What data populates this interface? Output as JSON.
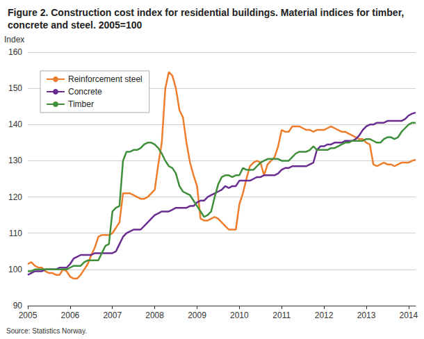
{
  "chart_data": {
    "type": "line",
    "title": "Figure 2. Construction cost index for residential buildings. Material indices for timber, concrete and steel. 2005=100",
    "y_label": "Index",
    "source": "Source: Statistics Norway.",
    "categories": [
      "2005",
      null,
      null,
      null,
      null,
      null,
      null,
      null,
      null,
      null,
      null,
      null,
      "2006",
      null,
      null,
      null,
      null,
      null,
      null,
      null,
      null,
      null,
      null,
      null,
      "2007",
      null,
      null,
      null,
      null,
      null,
      null,
      null,
      null,
      null,
      null,
      null,
      "2008",
      null,
      null,
      null,
      null,
      null,
      null,
      null,
      null,
      null,
      null,
      null,
      "2009",
      null,
      null,
      null,
      null,
      null,
      null,
      null,
      null,
      null,
      null,
      null,
      "2010",
      null,
      null,
      null,
      null,
      null,
      null,
      null,
      null,
      null,
      null,
      null,
      "2011",
      null,
      null,
      null,
      null,
      null,
      null,
      null,
      null,
      null,
      null,
      null,
      "2012",
      null,
      null,
      null,
      null,
      null,
      null,
      null,
      null,
      null,
      null,
      null,
      "2013",
      null,
      null,
      null,
      null,
      null,
      null,
      null,
      null,
      null,
      null,
      null,
      "2014",
      null,
      null
    ],
    "series": [
      {
        "name": "Reinforcement steel",
        "color": "#ee7d2b",
        "values": [
          101.5,
          102,
          101,
          100.5,
          100.5,
          99.5,
          99,
          99,
          98.5,
          98.5,
          100,
          99.5,
          98,
          97.5,
          97.5,
          98.5,
          100,
          101.5,
          104,
          106,
          109,
          109.5,
          109.5,
          109.5,
          110,
          111.5,
          113,
          121,
          121,
          121,
          120.5,
          120,
          119.5,
          119.5,
          120,
          121,
          122,
          129,
          135,
          150,
          154.5,
          153.5,
          150,
          144,
          142,
          135,
          129.5,
          126,
          123,
          114,
          113.5,
          113.5,
          114,
          114.5,
          114,
          113,
          112,
          111,
          111,
          111,
          118,
          121,
          125,
          128.5,
          129.5,
          130,
          129.5,
          126,
          129,
          130,
          131,
          134,
          138.5,
          138,
          138,
          139.5,
          139.5,
          139.5,
          139,
          138.5,
          138.5,
          138,
          138.5,
          138.5,
          138.5,
          139,
          139.5,
          139,
          138.5,
          138,
          138,
          137.5,
          137,
          136.5,
          136,
          136,
          135,
          134.5,
          129,
          128.5,
          129,
          129.5,
          129,
          129,
          128.5,
          129,
          129.5,
          129.5,
          129.5,
          130,
          130.3
        ]
      },
      {
        "name": "Concrete",
        "color": "#6b2c91",
        "values": [
          98.5,
          99,
          99.5,
          99.5,
          99.5,
          100,
          100,
          100,
          100,
          100.5,
          100.5,
          100.5,
          101.5,
          103,
          103.5,
          104,
          104,
          104,
          104,
          104.5,
          104.5,
          104.5,
          104.5,
          104.5,
          104.5,
          105,
          107,
          109,
          110,
          110.5,
          111,
          111,
          111,
          112,
          113,
          114,
          115,
          115.5,
          116,
          116,
          116,
          116.5,
          117,
          117,
          117,
          117,
          117.5,
          117.5,
          118.5,
          119,
          119,
          120,
          120.5,
          121,
          121.5,
          122,
          123,
          122.5,
          123,
          123,
          124.5,
          124.5,
          124.5,
          124.5,
          125,
          125.5,
          125.5,
          126,
          126,
          126,
          126,
          126.5,
          127.5,
          128,
          128,
          128.5,
          128.5,
          128.5,
          128.5,
          128.5,
          129,
          129.5,
          133,
          134,
          134,
          134.5,
          134.5,
          135,
          135,
          135,
          135.5,
          135.5,
          135.5,
          136,
          137,
          138.5,
          139.5,
          140,
          140,
          140.5,
          140.5,
          140.5,
          141,
          141,
          141,
          141,
          141,
          141.5,
          142.5,
          143,
          143.3
        ]
      },
      {
        "name": "Timber",
        "color": "#3e8e3a",
        "values": [
          99.5,
          99.5,
          100,
          100,
          100,
          100,
          100,
          100,
          100,
          100,
          100,
          100,
          100.5,
          101,
          101,
          101,
          102,
          102.5,
          102.5,
          102.5,
          102.5,
          104.5,
          106.5,
          107,
          116,
          117,
          117.5,
          130,
          132.5,
          132.5,
          133,
          133,
          133.5,
          134.5,
          135,
          135,
          134.5,
          133.5,
          132,
          130,
          128.5,
          128,
          126.5,
          123,
          121.5,
          121,
          120.5,
          119,
          117.5,
          116,
          114.5,
          115,
          116,
          120,
          123.5,
          125.5,
          126,
          126,
          125.5,
          126,
          126,
          128,
          127.5,
          127.5,
          127.5,
          128.5,
          129.5,
          130,
          130.5,
          130.5,
          130.5,
          130.5,
          130,
          130,
          130,
          131,
          132,
          132.5,
          132.5,
          132.5,
          133,
          134,
          133,
          133,
          133,
          133,
          133.5,
          133.5,
          134,
          134.5,
          135,
          135,
          135.5,
          135.5,
          135.5,
          135.5,
          136,
          136,
          135.5,
          135,
          135,
          136,
          136.5,
          136.5,
          136,
          136.5,
          138,
          139,
          140,
          140.5,
          140.5
        ]
      }
    ],
    "ylim": [
      90,
      160
    ],
    "yticks": [
      90,
      100,
      110,
      120,
      130,
      140,
      150,
      160
    ],
    "grid": true,
    "legend": "upper left"
  }
}
